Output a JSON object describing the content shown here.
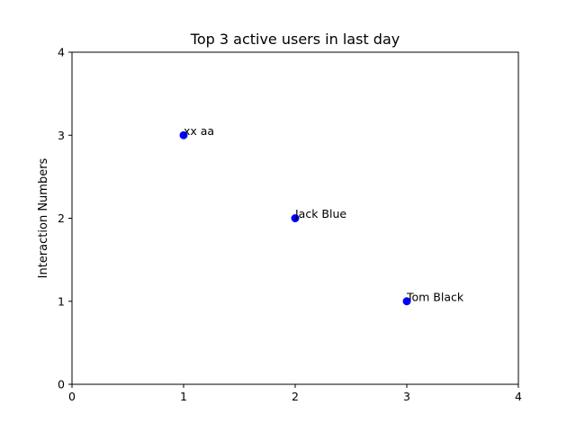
{
  "chart_data": {
    "type": "scatter",
    "title": "Top 3 active users in last day",
    "xlabel": "",
    "ylabel": "Interaction Numbers",
    "xlim": [
      0,
      4
    ],
    "ylim": [
      0,
      4
    ],
    "x_ticks": [
      0,
      1,
      2,
      3,
      4
    ],
    "y_ticks": [
      0,
      1,
      2,
      3,
      4
    ],
    "grid": false,
    "legend": "none",
    "point_color": "#0000ff",
    "points": [
      {
        "x": 1,
        "y": 3,
        "label": "xx aa"
      },
      {
        "x": 2,
        "y": 2,
        "label": "Jack Blue"
      },
      {
        "x": 3,
        "y": 1,
        "label": "Tom Black"
      }
    ]
  }
}
